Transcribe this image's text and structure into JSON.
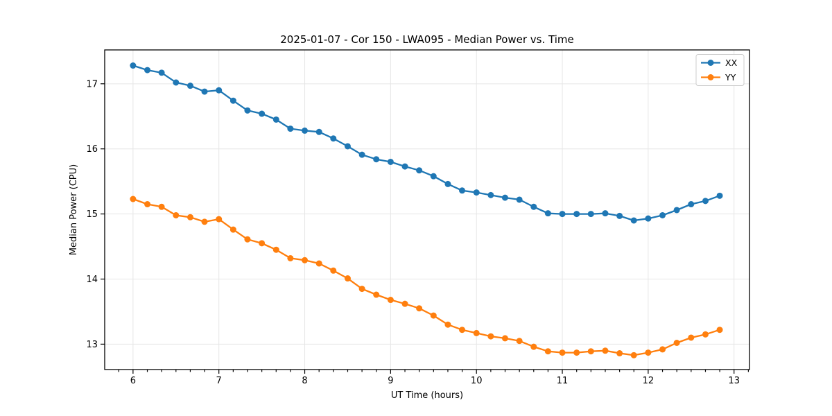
{
  "figure": {
    "title": "2025-01-07 - Cor 150 - LWA095 - Median Power vs. Time"
  },
  "chart_data": {
    "type": "line",
    "title": "2025-01-07 - Cor 150 - LWA095 - Median Power vs. Time",
    "xlabel": "UT Time (hours)",
    "ylabel": "Median Power (CPU)",
    "xlim": [
      5.67,
      13.18
    ],
    "ylim": [
      12.61,
      17.52
    ],
    "x_ticks": [
      6,
      7,
      8,
      9,
      10,
      11,
      12,
      13
    ],
    "y_ticks": [
      13,
      14,
      15,
      16,
      17
    ],
    "x_minor_tick_step": 0.16667,
    "grid": true,
    "legend_position": "upper right",
    "marker": "circle",
    "colors": {
      "series_xx": "#1f77b4",
      "series_yy": "#ff7f0e",
      "grid": "#e6e6e6",
      "spine": "#000000",
      "legend_border": "#cccccc"
    },
    "x": [
      6.0,
      6.167,
      6.333,
      6.5,
      6.667,
      6.833,
      7.0,
      7.167,
      7.333,
      7.5,
      7.667,
      7.833,
      8.0,
      8.167,
      8.333,
      8.5,
      8.667,
      8.833,
      9.0,
      9.167,
      9.333,
      9.5,
      9.667,
      9.833,
      10.0,
      10.167,
      10.333,
      10.5,
      10.667,
      10.833,
      11.0,
      11.167,
      11.333,
      11.5,
      11.667,
      11.833,
      12.0,
      12.167,
      12.333,
      12.5,
      12.667,
      12.833
    ],
    "series": [
      {
        "name": "XX",
        "color": "#1f77b4",
        "values": [
          17.28,
          17.21,
          17.17,
          17.02,
          16.97,
          16.88,
          16.9,
          16.74,
          16.59,
          16.54,
          16.45,
          16.31,
          16.28,
          16.26,
          16.16,
          16.04,
          15.91,
          15.84,
          15.8,
          15.73,
          15.67,
          15.58,
          15.46,
          15.36,
          15.33,
          15.29,
          15.25,
          15.22,
          15.11,
          15.01,
          15.0,
          15.0,
          15.0,
          15.01,
          14.97,
          14.9,
          14.93,
          14.98,
          15.06,
          15.15,
          15.2,
          15.28
        ]
      },
      {
        "name": "YY",
        "color": "#ff7f0e",
        "values": [
          15.23,
          15.15,
          15.11,
          14.98,
          14.95,
          14.88,
          14.92,
          14.76,
          14.61,
          14.55,
          14.45,
          14.32,
          14.29,
          14.24,
          14.13,
          14.01,
          13.85,
          13.76,
          13.68,
          13.62,
          13.55,
          13.44,
          13.3,
          13.22,
          13.17,
          13.12,
          13.09,
          13.05,
          12.96,
          12.89,
          12.87,
          12.87,
          12.89,
          12.9,
          12.86,
          12.83,
          12.87,
          12.92,
          13.02,
          13.1,
          13.15,
          13.22
        ]
      }
    ]
  }
}
